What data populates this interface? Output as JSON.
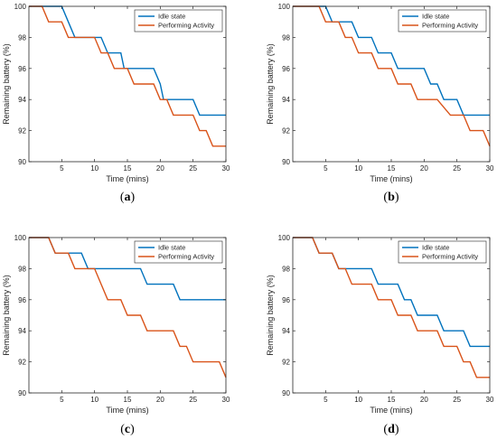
{
  "colors": {
    "idle": "#0072BD",
    "activity": "#D95319"
  },
  "chart_data": [
    {
      "panel_label": "a",
      "type": "line",
      "xlabel": "Time (mins)",
      "ylabel": "Remaining battery (%)",
      "xlim": [
        0,
        30
      ],
      "ylim": [
        90,
        100
      ],
      "xticks": [
        5,
        10,
        15,
        20,
        25,
        30
      ],
      "yticks": [
        90,
        92,
        94,
        96,
        98,
        100
      ],
      "legend_position": "top-right",
      "series": [
        {
          "name": "Idle state",
          "points": [
            [
              0,
              100
            ],
            [
              5,
              100
            ],
            [
              6,
              99
            ],
            [
              7,
              98
            ],
            [
              11,
              98
            ],
            [
              12,
              97
            ],
            [
              14,
              97
            ],
            [
              14.5,
              96
            ],
            [
              19,
              96
            ],
            [
              20,
              95
            ],
            [
              20.5,
              94
            ],
            [
              25,
              94
            ],
            [
              26,
              93
            ],
            [
              30,
              93
            ]
          ]
        },
        {
          "name": "Performing Activity",
          "points": [
            [
              0,
              100
            ],
            [
              2,
              100
            ],
            [
              3,
              99
            ],
            [
              5,
              99
            ],
            [
              6,
              98
            ],
            [
              10,
              98
            ],
            [
              11,
              97
            ],
            [
              12,
              97
            ],
            [
              13,
              96
            ],
            [
              15,
              96
            ],
            [
              16,
              95
            ],
            [
              19,
              95
            ],
            [
              20,
              94
            ],
            [
              21,
              94
            ],
            [
              22,
              93
            ],
            [
              25,
              93
            ],
            [
              26,
              92
            ],
            [
              27,
              92
            ],
            [
              28,
              91
            ],
            [
              30,
              91
            ]
          ]
        }
      ]
    },
    {
      "panel_label": "b",
      "type": "line",
      "xlabel": "Time (mins)",
      "ylabel": "Remaining battery (%)",
      "xlim": [
        0,
        30
      ],
      "ylim": [
        90,
        100
      ],
      "xticks": [
        5,
        10,
        15,
        20,
        25,
        30
      ],
      "yticks": [
        90,
        92,
        94,
        96,
        98,
        100
      ],
      "legend_position": "top-right",
      "series": [
        {
          "name": "Idle state",
          "points": [
            [
              0,
              100
            ],
            [
              5,
              100
            ],
            [
              6,
              99
            ],
            [
              9,
              99
            ],
            [
              10,
              98
            ],
            [
              12,
              98
            ],
            [
              13,
              97
            ],
            [
              15,
              97
            ],
            [
              16,
              96
            ],
            [
              20,
              96
            ],
            [
              21,
              95
            ],
            [
              22,
              95
            ],
            [
              23,
              94
            ],
            [
              25,
              94
            ],
            [
              26,
              93
            ],
            [
              30,
              93
            ]
          ]
        },
        {
          "name": "Performing Activity",
          "points": [
            [
              0,
              100
            ],
            [
              4,
              100
            ],
            [
              5,
              99
            ],
            [
              7,
              99
            ],
            [
              8,
              98
            ],
            [
              9,
              98
            ],
            [
              10,
              97
            ],
            [
              12,
              97
            ],
            [
              13,
              96
            ],
            [
              15,
              96
            ],
            [
              16,
              95
            ],
            [
              18,
              95
            ],
            [
              19,
              94
            ],
            [
              21,
              94
            ],
            [
              22,
              94
            ],
            [
              24,
              93
            ],
            [
              26,
              93
            ],
            [
              27,
              92
            ],
            [
              29,
              92
            ],
            [
              30,
              91
            ]
          ]
        }
      ]
    },
    {
      "panel_label": "c",
      "type": "line",
      "xlabel": "Time (mins)",
      "ylabel": "Remaining battery (%)",
      "xlim": [
        0,
        30
      ],
      "ylim": [
        90,
        100
      ],
      "xticks": [
        5,
        10,
        15,
        20,
        25,
        30
      ],
      "yticks": [
        90,
        92,
        94,
        96,
        98,
        100
      ],
      "legend_position": "top-right",
      "series": [
        {
          "name": "Idle state",
          "points": [
            [
              0,
              100
            ],
            [
              3,
              100
            ],
            [
              4,
              99
            ],
            [
              8,
              99
            ],
            [
              9,
              98
            ],
            [
              17,
              98
            ],
            [
              18,
              97
            ],
            [
              22,
              97
            ],
            [
              23,
              96
            ],
            [
              30,
              96
            ]
          ]
        },
        {
          "name": "Performing Activity",
          "points": [
            [
              0,
              100
            ],
            [
              3,
              100
            ],
            [
              4,
              99
            ],
            [
              6,
              99
            ],
            [
              7,
              98
            ],
            [
              10,
              98
            ],
            [
              11,
              97
            ],
            [
              12,
              96
            ],
            [
              14,
              96
            ],
            [
              15,
              95
            ],
            [
              17,
              95
            ],
            [
              18,
              94
            ],
            [
              19,
              94
            ],
            [
              20,
              94
            ],
            [
              22,
              94
            ],
            [
              23,
              93
            ],
            [
              24,
              93
            ],
            [
              25,
              92
            ],
            [
              29,
              92
            ],
            [
              30,
              91
            ]
          ]
        }
      ]
    },
    {
      "panel_label": "d",
      "type": "line",
      "xlabel": "Time (mins)",
      "ylabel": "Remaining battery (%)",
      "xlim": [
        0,
        30
      ],
      "ylim": [
        90,
        100
      ],
      "xticks": [
        5,
        10,
        15,
        20,
        25,
        30
      ],
      "yticks": [
        90,
        92,
        94,
        96,
        98,
        100
      ],
      "legend_position": "top-right",
      "series": [
        {
          "name": "Idle state",
          "points": [
            [
              0,
              100
            ],
            [
              3,
              100
            ],
            [
              4,
              99
            ],
            [
              6,
              99
            ],
            [
              7,
              98
            ],
            [
              12,
              98
            ],
            [
              13,
              97
            ],
            [
              16,
              97
            ],
            [
              17,
              96
            ],
            [
              18,
              96
            ],
            [
              19,
              95
            ],
            [
              22,
              95
            ],
            [
              23,
              94
            ],
            [
              26,
              94
            ],
            [
              27,
              93
            ],
            [
              30,
              93
            ]
          ]
        },
        {
          "name": "Performing Activity",
          "points": [
            [
              0,
              100
            ],
            [
              3,
              100
            ],
            [
              4,
              99
            ],
            [
              6,
              99
            ],
            [
              7,
              98
            ],
            [
              8,
              98
            ],
            [
              9,
              97
            ],
            [
              12,
              97
            ],
            [
              13,
              96
            ],
            [
              15,
              96
            ],
            [
              16,
              95
            ],
            [
              18,
              95
            ],
            [
              19,
              94
            ],
            [
              22,
              94
            ],
            [
              23,
              93
            ],
            [
              25,
              93
            ],
            [
              26,
              92
            ],
            [
              27,
              92
            ],
            [
              28,
              91
            ],
            [
              30,
              91
            ]
          ]
        }
      ]
    }
  ]
}
